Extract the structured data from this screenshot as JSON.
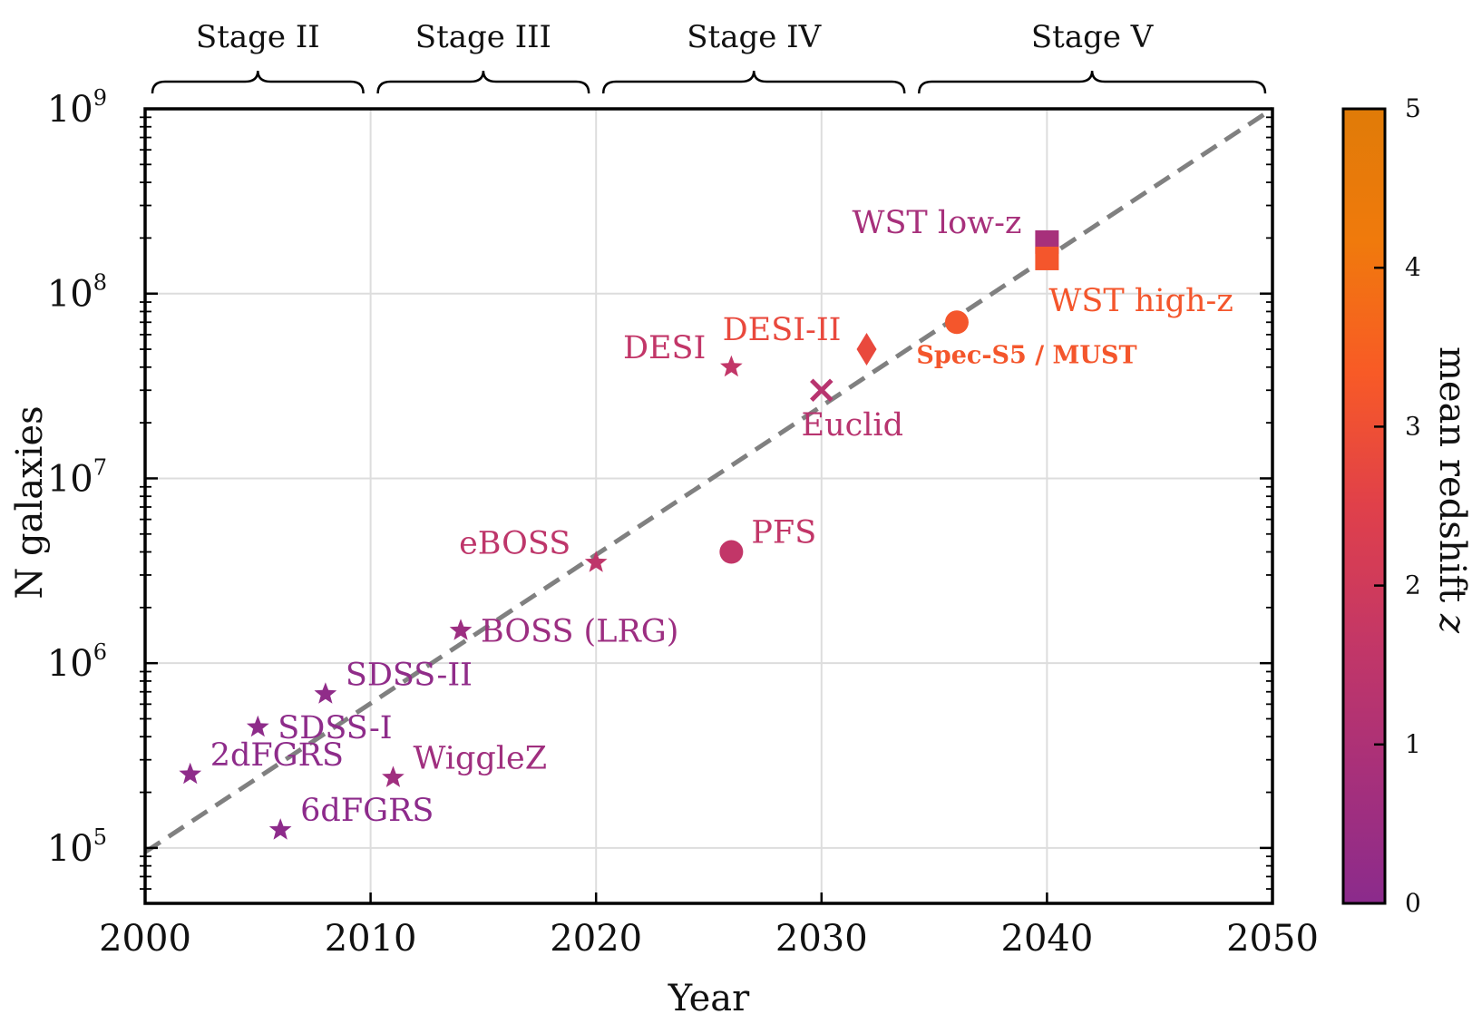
{
  "chart_data": {
    "type": "scatter",
    "xlabel": "Year",
    "ylabel": "N galaxies",
    "xlim": [
      2000,
      2050
    ],
    "ylim": [
      50000,
      1000000000
    ],
    "yscale": "log",
    "grid": true,
    "x_ticks": [
      2000,
      2010,
      2020,
      2030,
      2040,
      2050
    ],
    "x_tick_labels": [
      "2000",
      "2010",
      "2020",
      "2030",
      "2040",
      "2050"
    ],
    "y_ticks": [
      {
        "value": 100000,
        "base": "10",
        "exp": "5"
      },
      {
        "value": 1000000,
        "base": "10",
        "exp": "6"
      },
      {
        "value": 10000000,
        "base": "10",
        "exp": "7"
      },
      {
        "value": 100000000,
        "base": "10",
        "exp": "8"
      },
      {
        "value": 1000000000,
        "base": "10",
        "exp": "9"
      }
    ],
    "trend_line": {
      "style": "dashed",
      "color": "#808080",
      "from": [
        2000,
        95000
      ],
      "to": [
        2050,
        1000000000
      ]
    },
    "stages": [
      {
        "label": "Stage II",
        "x_start": 2000,
        "x_end": 2010
      },
      {
        "label": "Stage III",
        "x_start": 2010,
        "x_end": 2020
      },
      {
        "label": "Stage IV",
        "x_start": 2020,
        "x_end": 2034
      },
      {
        "label": "Stage V",
        "x_start": 2034,
        "x_end": 2050
      }
    ],
    "colorbar": {
      "label": "mean redshift",
      "label_var": "z",
      "range": [
        0,
        5
      ],
      "ticks": [
        "0",
        "1",
        "2",
        "3",
        "4",
        "5"
      ],
      "colors": [
        "#8b2b8c",
        "#a8307a",
        "#c43766",
        "#e0404a",
        "#f85a26",
        "#f07a0c",
        "#e07b08"
      ]
    },
    "points": [
      {
        "name": "2dFGRS",
        "year": 2002,
        "n": 250000,
        "z": 0.1,
        "marker": "star",
        "label_pos": "right-up"
      },
      {
        "name": "SDSS-I",
        "year": 2005,
        "n": 450000,
        "z": 0.1,
        "marker": "star",
        "label_pos": "right"
      },
      {
        "name": "6dFGRS",
        "year": 2006,
        "n": 125000,
        "z": 0.05,
        "marker": "star",
        "label_pos": "right-up"
      },
      {
        "name": "SDSS-II",
        "year": 2008,
        "n": 680000,
        "z": 0.15,
        "marker": "star",
        "label_pos": "right-up"
      },
      {
        "name": "WiggleZ",
        "year": 2011,
        "n": 240000,
        "z": 0.6,
        "marker": "star",
        "label_pos": "right-up"
      },
      {
        "name": "BOSS (LRG)",
        "year": 2014,
        "n": 1500000,
        "z": 0.5,
        "marker": "star",
        "label_pos": "right"
      },
      {
        "name": "eBOSS",
        "year": 2020,
        "n": 3500000,
        "z": 1.5,
        "marker": "star",
        "label_pos": "left-up"
      },
      {
        "name": "PFS",
        "year": 2026,
        "n": 4000000,
        "z": 1.6,
        "marker": "circle",
        "label_pos": "right-up"
      },
      {
        "name": "DESI",
        "year": 2026,
        "n": 40000000,
        "z": 1.6,
        "marker": "star",
        "label_pos": "left-up"
      },
      {
        "name": "Euclid",
        "year": 2030,
        "n": 30000000,
        "z": 1.3,
        "marker": "x",
        "label_pos": "below"
      },
      {
        "name": "DESI-II",
        "year": 2032,
        "n": 50000000,
        "z": 2.8,
        "marker": "diamond",
        "label_pos": "left-up"
      },
      {
        "name": "Spec-S5 / MUST",
        "year": 2036,
        "n": 70000000,
        "z": 3.2,
        "marker": "circle",
        "label_pos": "below-bold"
      },
      {
        "name": "WST low-z",
        "year": 2040,
        "n": 190000000,
        "z": 0.8,
        "marker": "square",
        "label_pos": "left-up"
      },
      {
        "name": "WST high-z",
        "year": 2040,
        "n": 155000000,
        "z": 3.2,
        "marker": "square",
        "label_pos": "right-down"
      }
    ]
  }
}
